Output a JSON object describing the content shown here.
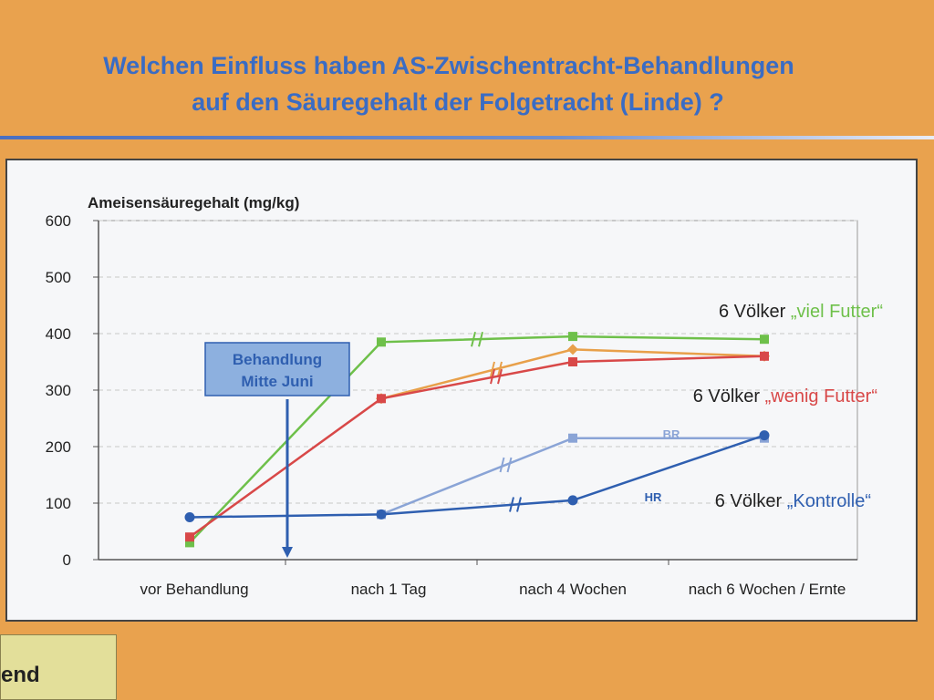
{
  "poster": {
    "title_line1": "Welchen Einfluss haben AS-Zwischentracht-Behandlungen",
    "title_line2": "auf den Säuregehalt der Folgetracht (Linde) ?",
    "bottom_box_text": "end"
  },
  "chart_data": {
    "type": "line",
    "ylabel": "Ameisensäuregehalt (mg/kg)",
    "xlabel": "",
    "categories": [
      "vor Behandlung",
      "nach 1 Tag",
      "nach 4 Wochen",
      "nach 6 Wochen / Ernte"
    ],
    "ylim": [
      0,
      600
    ],
    "yticks": [
      0,
      100,
      200,
      300,
      400,
      500,
      600
    ],
    "grid": true,
    "series": [
      {
        "key": "viel",
        "color": "#6ec04a",
        "marker": "square",
        "values": [
          30,
          385,
          395,
          390
        ],
        "breaks": [
          1.5
        ]
      },
      {
        "key": "orange",
        "color": "#e8a04a",
        "marker": "diamond",
        "values": [
          null,
          285,
          372,
          360
        ],
        "breaks": [
          1.6
        ]
      },
      {
        "key": "wenig",
        "color": "#d84848",
        "marker": "square",
        "values": [
          40,
          285,
          350,
          360
        ],
        "breaks": [
          1.6
        ]
      },
      {
        "key": "br",
        "color": "#8aa4d6",
        "marker": "square",
        "values": [
          null,
          80,
          215,
          215
        ],
        "breaks": [
          1.65
        ]
      },
      {
        "key": "kontrolle",
        "color": "#2f5fb0",
        "marker": "circle",
        "values": [
          75,
          80,
          105,
          220
        ],
        "breaks": [
          1.7
        ]
      }
    ],
    "labels": {
      "viel": {
        "prefix": "6 Völker ",
        "name": "„viel Futter“"
      },
      "wenig": {
        "prefix": "6 Völker ",
        "name": "„wenig Futter“"
      },
      "kontrolle": {
        "prefix": "6 Völker ",
        "name": "„Kontrolle“"
      }
    },
    "annotations": {
      "treatment_line1": "Behandlung",
      "treatment_line2": "Mitte Juni",
      "br": "BR",
      "hr": "HR"
    }
  }
}
